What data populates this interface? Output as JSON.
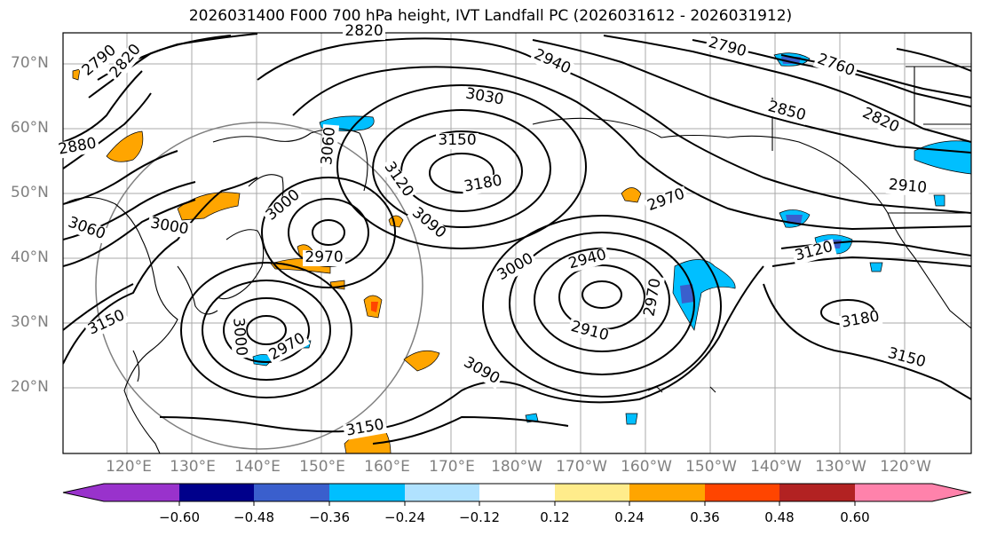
{
  "title": "2026031400 F000 700 hPa height, IVT Landfall PC (2026031612 - 2026031912)",
  "latitude_labels": [
    "70°N",
    "60°N",
    "50°N",
    "40°N",
    "30°N",
    "20°N"
  ],
  "longitude_labels": [
    "120°E",
    "130°E",
    "140°E",
    "150°E",
    "160°E",
    "170°E",
    "180°W",
    "170°W",
    "160°W",
    "150°W",
    "140°W",
    "130°W",
    "120°W"
  ],
  "contour_labels": [
    "2790",
    "2820",
    "2820",
    "2940",
    "2790",
    "2760",
    "2850",
    "2820",
    "2880",
    "3030",
    "3150",
    "3060",
    "3180",
    "3120",
    "3090",
    "2910",
    "2970",
    "3000",
    "3000",
    "3060",
    "2970",
    "3000",
    "2940",
    "2970",
    "3120",
    "2910",
    "3150",
    "3000",
    "2970",
    "3090",
    "3180",
    "3150",
    "3150"
  ],
  "colorbar": {
    "ticks": [
      "−0.60",
      "−0.48",
      "−0.36",
      "−0.24",
      "−0.12",
      "0.12",
      "0.24",
      "0.36",
      "0.48",
      "0.60"
    ],
    "colors": [
      "#9932cc",
      "#00008b",
      "#3a5fcd",
      "#00bfff",
      "#b0e2ff",
      "#ffffff",
      "#ffec8b",
      "#ffa500",
      "#ff4500",
      "#b22222",
      "#ff82ab"
    ]
  },
  "colors": {
    "land_line": "#000000",
    "grid": "#a0a0a0",
    "axis_text": "#808080"
  }
}
